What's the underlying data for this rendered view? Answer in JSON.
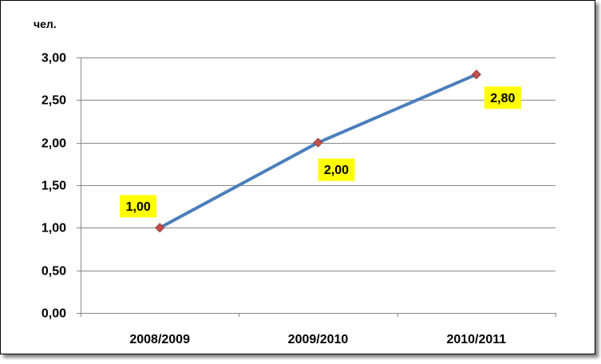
{
  "chart_data": {
    "type": "line",
    "title": "",
    "ylabel": "чел.",
    "xlabel": "",
    "categories": [
      "2008/2009",
      "2009/2010",
      "2010/2011"
    ],
    "values": [
      1.0,
      2.0,
      2.8
    ],
    "data_labels": [
      "1,00",
      "2,00",
      "2,80"
    ],
    "ylim": [
      0,
      3
    ],
    "yticks": [
      0,
      0.5,
      1,
      1.5,
      2,
      2.5,
      3
    ],
    "ytick_labels": [
      "0,00",
      "0,50",
      "1,00",
      "1,50",
      "2,00",
      "2,50",
      "3,00"
    ],
    "grid": true,
    "legend": "none"
  },
  "colors": {
    "line": "#4a7ebb",
    "marker": "#c0504d",
    "label_background": "#ffff00",
    "grid": "#868686",
    "border": "#000000"
  }
}
